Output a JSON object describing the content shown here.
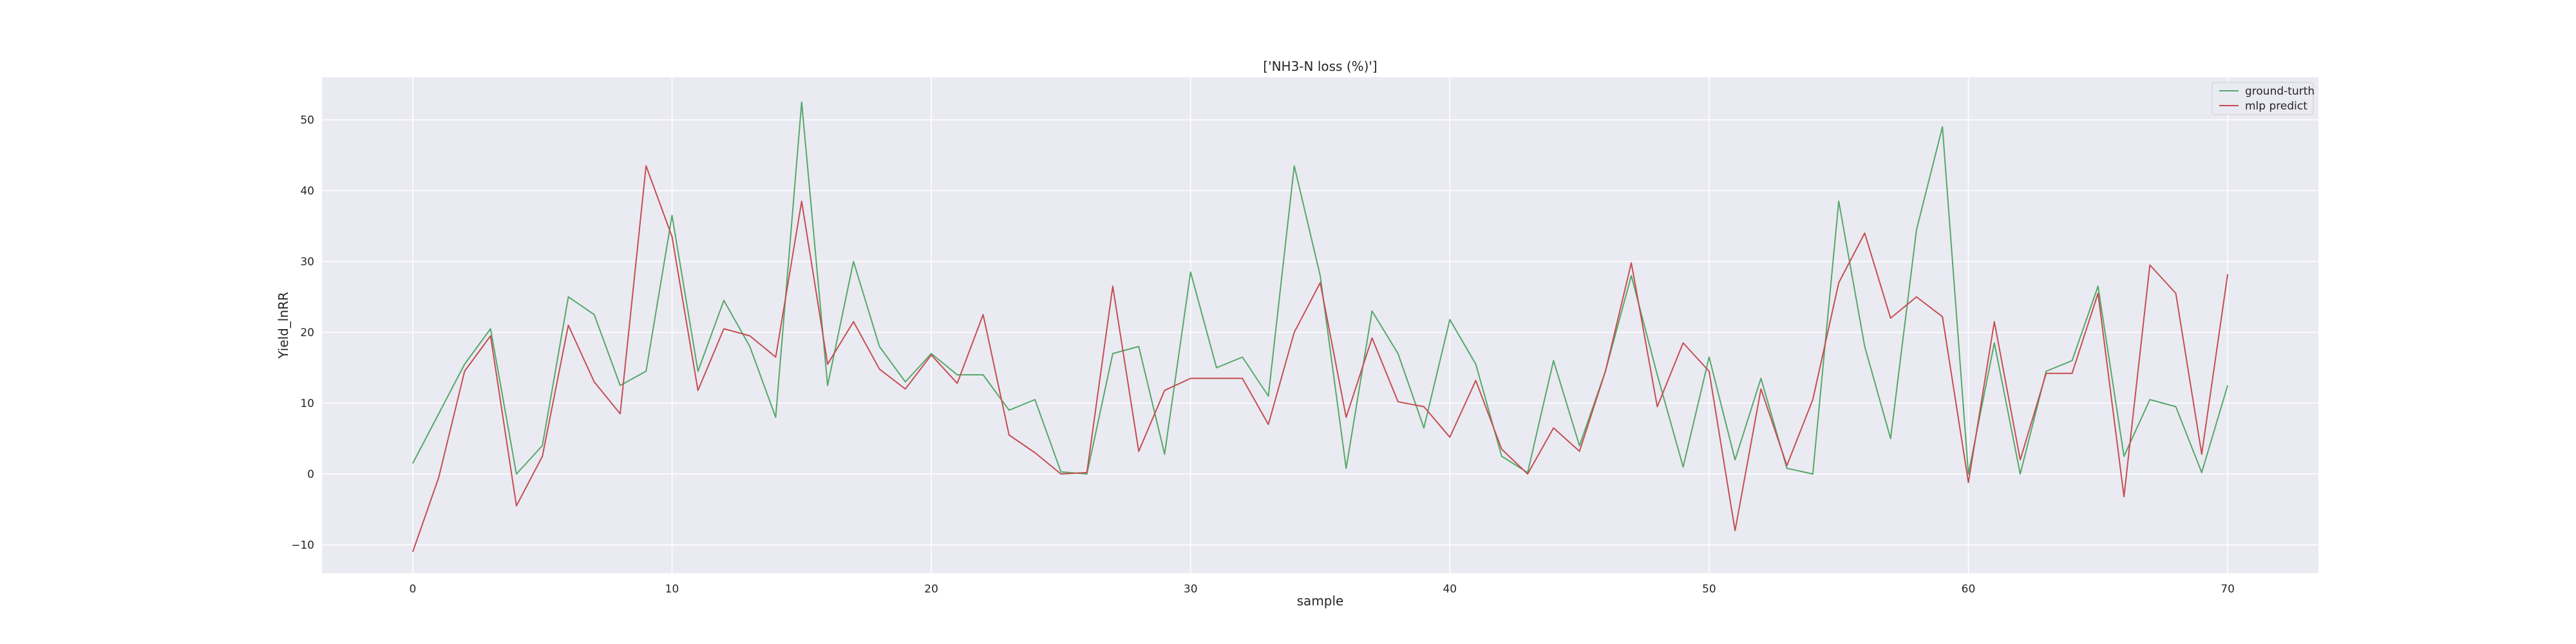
{
  "chart_data": {
    "type": "line",
    "title": "['NH3-N loss (%)']",
    "xlabel": "sample",
    "ylabel": "Yield_lnRR",
    "xlim": [
      -3.5,
      73.5
    ],
    "ylim": [
      -14,
      56
    ],
    "xticks": [
      0,
      10,
      20,
      30,
      40,
      50,
      60,
      70
    ],
    "yticks": [
      -10,
      0,
      10,
      20,
      30,
      40,
      50
    ],
    "grid": true,
    "legend_position": "top-right",
    "x": [
      0,
      1,
      2,
      3,
      4,
      5,
      6,
      7,
      8,
      9,
      10,
      11,
      12,
      13,
      14,
      15,
      16,
      17,
      18,
      19,
      20,
      21,
      22,
      23,
      24,
      25,
      26,
      27,
      28,
      29,
      30,
      31,
      32,
      33,
      34,
      35,
      36,
      37,
      38,
      39,
      40,
      41,
      42,
      43,
      44,
      45,
      46,
      47,
      48,
      49,
      50,
      51,
      52,
      53,
      54,
      55,
      56,
      57,
      58,
      59,
      60,
      61,
      62,
      63,
      64,
      65,
      66,
      67,
      68,
      69,
      70
    ],
    "series": [
      {
        "name": "ground-turth",
        "color": "#55a868",
        "values": [
          1.5,
          8.5,
          15.5,
          20.5,
          0,
          4,
          25,
          22.5,
          12.5,
          14.5,
          36.5,
          14.5,
          24.5,
          18,
          8,
          52.5,
          12.5,
          30,
          18,
          13,
          17,
          14,
          14,
          9,
          10.5,
          0.3,
          0,
          17,
          18,
          2.8,
          28.5,
          15,
          16.5,
          11,
          43.5,
          28,
          0.8,
          23,
          17,
          6.5,
          21.8,
          15.5,
          2.5,
          0.2,
          16,
          4,
          14.5,
          28,
          14,
          1,
          16.5,
          2,
          13.5,
          0.8,
          0,
          38.5,
          18,
          5,
          34.5,
          49,
          0,
          18.5,
          0,
          14.5,
          16,
          26.5,
          2.5,
          10.5,
          9.5,
          0.2,
          12.5
        ]
      },
      {
        "name": "mlp predict",
        "color": "#c44e52",
        "values": [
          -11,
          -0.5,
          14.5,
          19.5,
          -4.5,
          2.5,
          21,
          13,
          8.5,
          43.5,
          33.5,
          11.8,
          20.5,
          19.5,
          16.5,
          38.5,
          15.5,
          21.5,
          14.8,
          12,
          16.8,
          12.8,
          22.5,
          5.5,
          3,
          0,
          0.2,
          26.5,
          3.2,
          11.8,
          13.5,
          13.5,
          13.5,
          7,
          20,
          27,
          8,
          19.2,
          10.2,
          9.5,
          5.2,
          13.2,
          3.5,
          0,
          6.5,
          3.2,
          14.5,
          29.8,
          9.5,
          18.5,
          14.5,
          -8,
          12,
          1.2,
          10.5,
          27,
          34,
          22,
          25,
          22.2,
          -1.2,
          21.5,
          2,
          14.2,
          14.2,
          25.5,
          -3.2,
          29.5,
          25.5,
          2.8,
          28.2
        ]
      }
    ]
  }
}
